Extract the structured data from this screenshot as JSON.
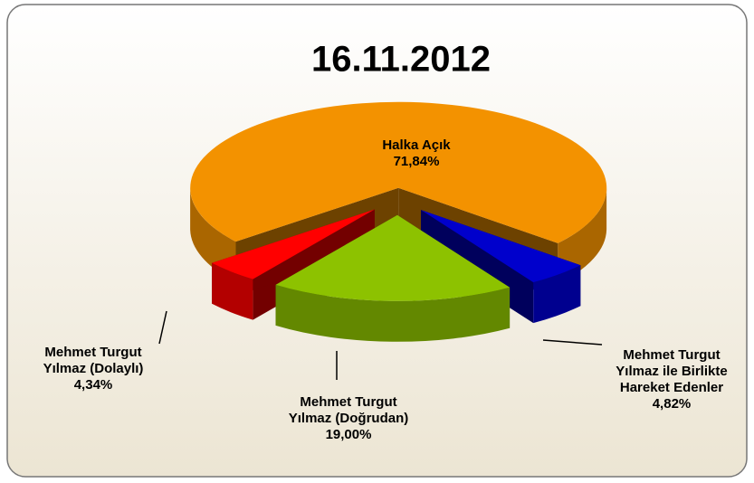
{
  "chart_data": {
    "type": "pie",
    "title": "16.11.2012",
    "categories": [
      "Halka Açık",
      "Mehmet Turgut Yılmaz ile Birlikte Hareket Edenler",
      "Mehmet Turgut Yılmaz (Doğrudan)",
      "Mehmet Turgut Yılmaz (Dolaylı)"
    ],
    "values": [
      71.84,
      4.82,
      19.0,
      4.34
    ],
    "value_labels": [
      "71,84%",
      "4,82%",
      "19,00%",
      "4,34%"
    ],
    "colors": [
      "#f39200",
      "#0000cc",
      "#8dc200",
      "#ff0000"
    ]
  }
}
